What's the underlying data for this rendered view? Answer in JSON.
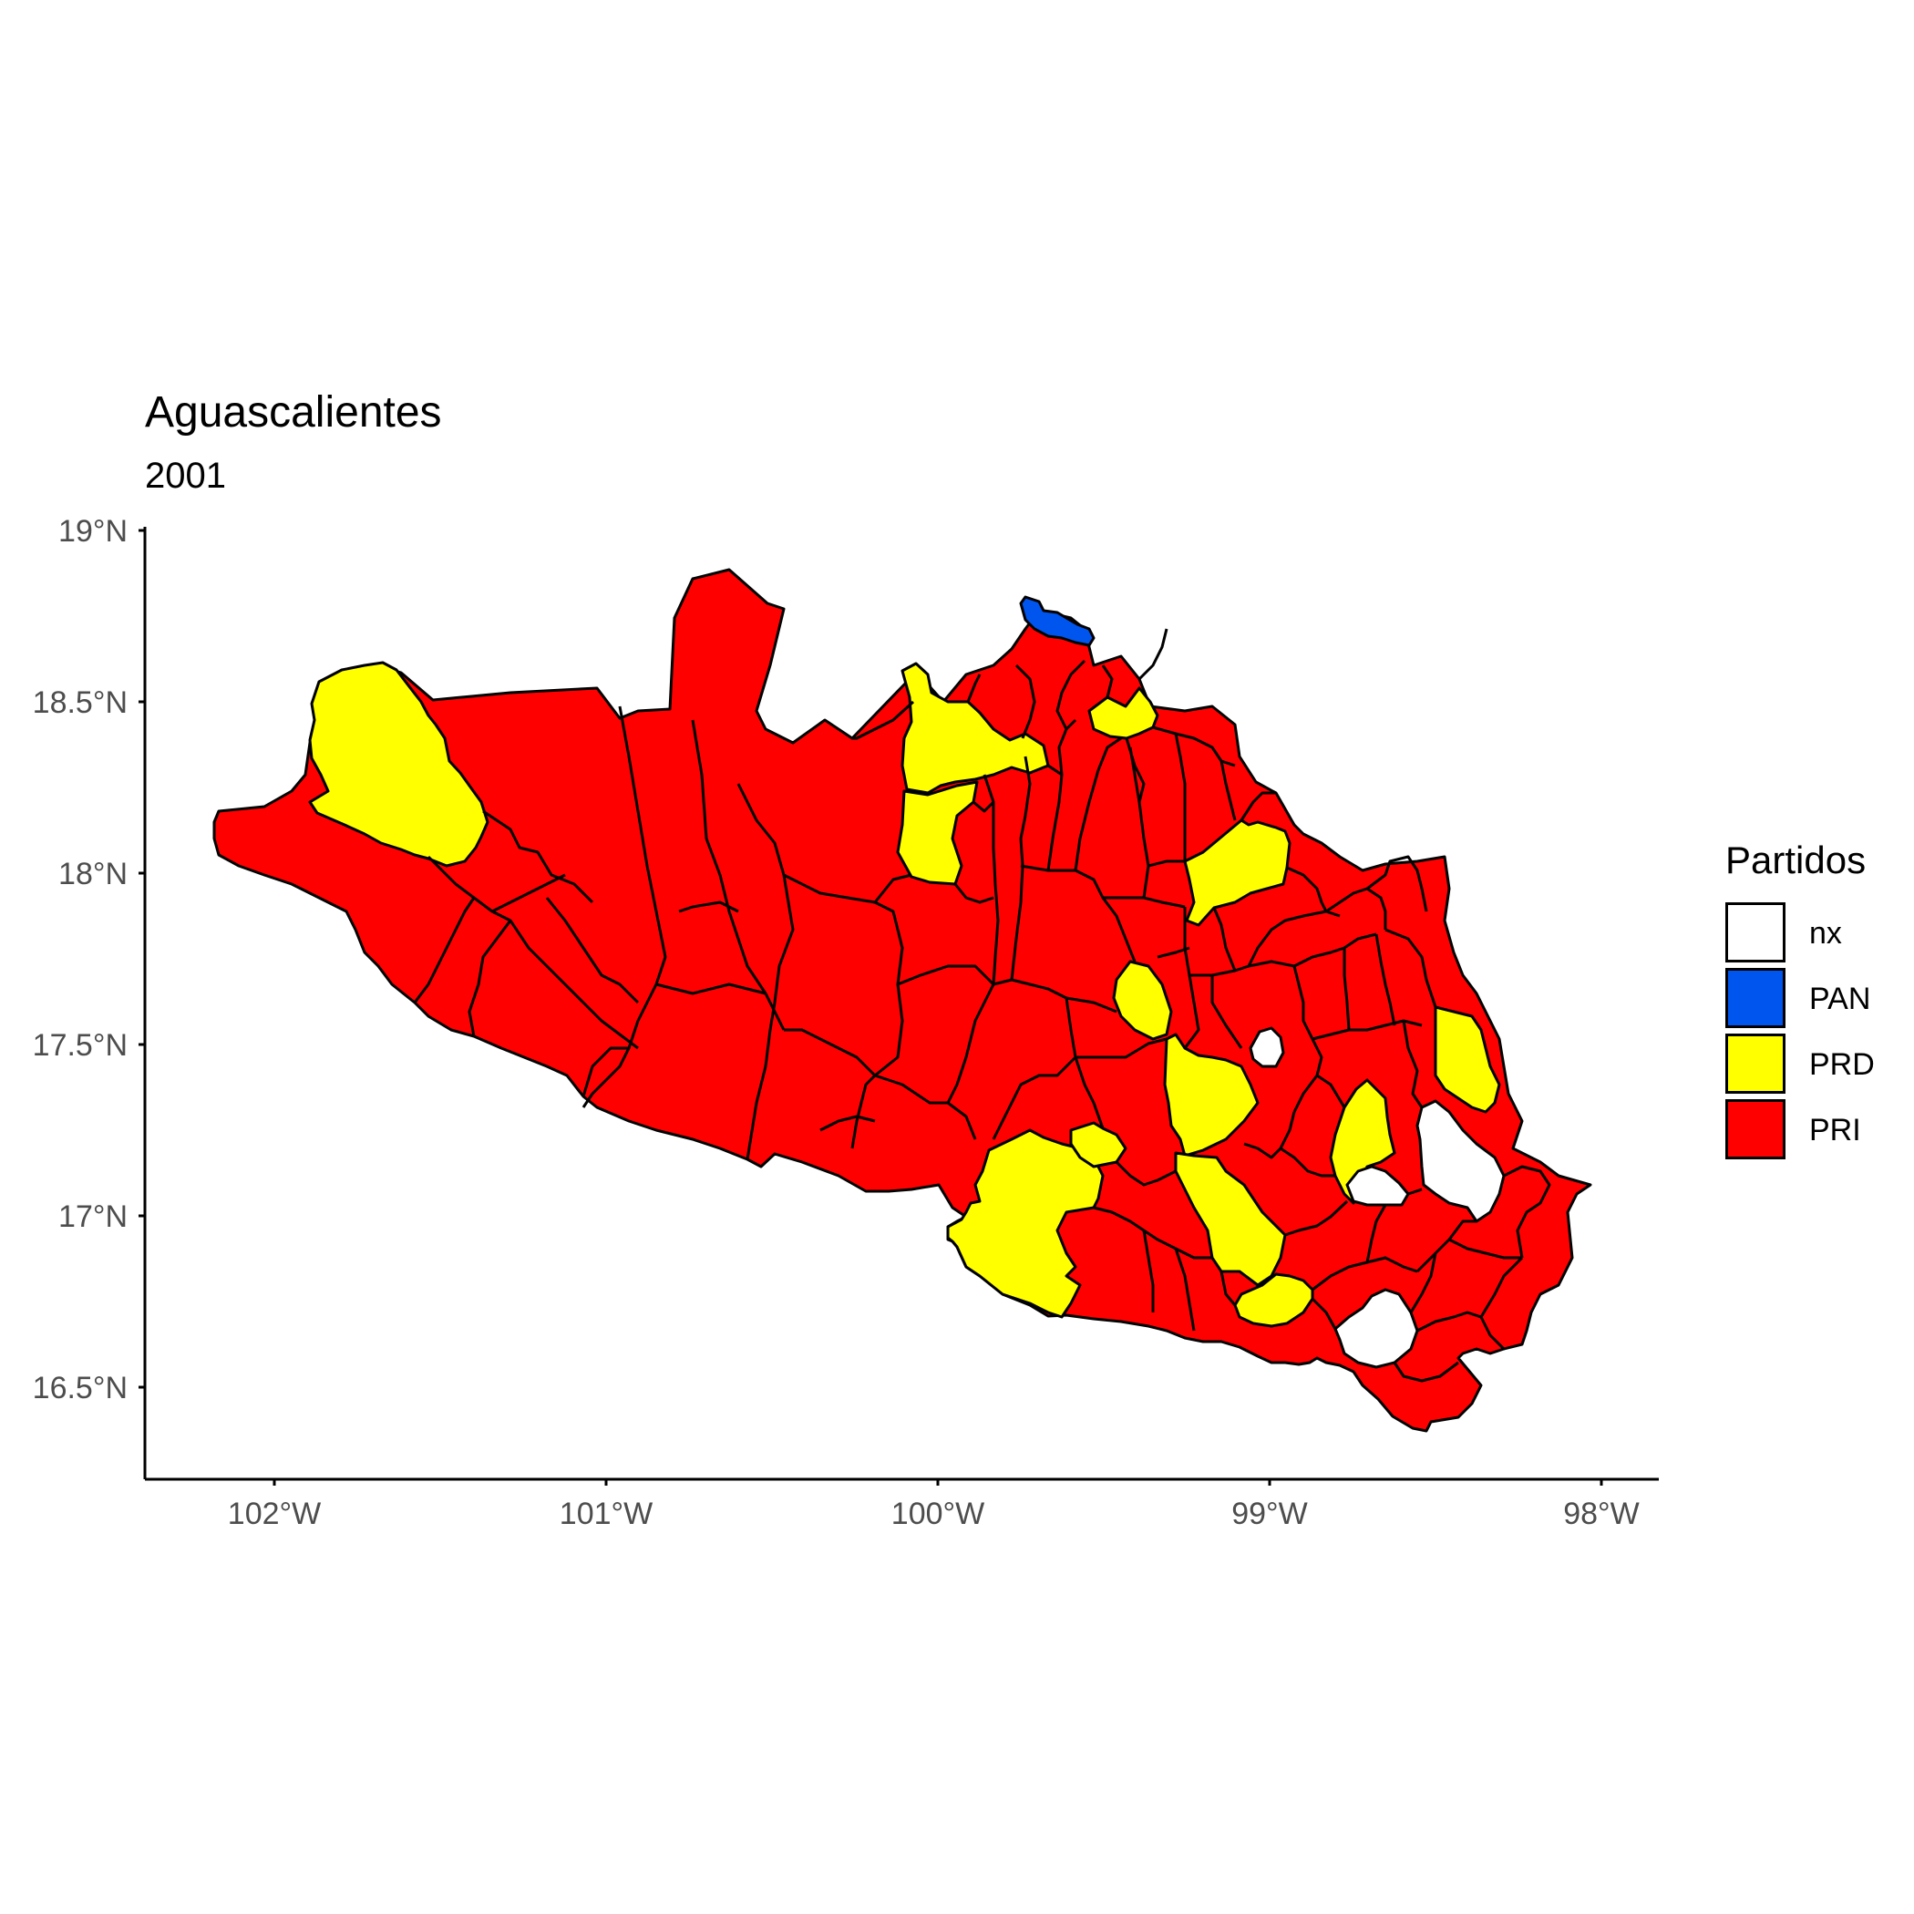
{
  "title": "Aguascalientes",
  "subtitle": "2001",
  "legend": {
    "title": "Partidos",
    "items": [
      {
        "label": "nx",
        "color": "#ffffff"
      },
      {
        "label": "PAN",
        "color": "#0055ee"
      },
      {
        "label": "PRD",
        "color": "#ffff00"
      },
      {
        "label": "PRI",
        "color": "#ff0000"
      }
    ]
  },
  "chart_data": {
    "type": "choropleth",
    "title": "Aguascalientes",
    "subtitle": "2001",
    "x_ticks": [
      "102°W",
      "101°W",
      "100°W",
      "99°W",
      "98°W"
    ],
    "y_ticks": [
      "16.5°N",
      "17°N",
      "17.5°N",
      "18°N",
      "18.5°N",
      "19°N"
    ],
    "xlim_deg_west": [
      102.4,
      97.83
    ],
    "ylim_deg_north": [
      16.28,
      19.0
    ],
    "categories": [
      "nx",
      "PAN",
      "PRD",
      "PRI"
    ],
    "colors": {
      "nx": "#ffffff",
      "PAN": "#0055ee",
      "PRD": "#ffff00",
      "PRI": "#ff0000"
    }
  }
}
